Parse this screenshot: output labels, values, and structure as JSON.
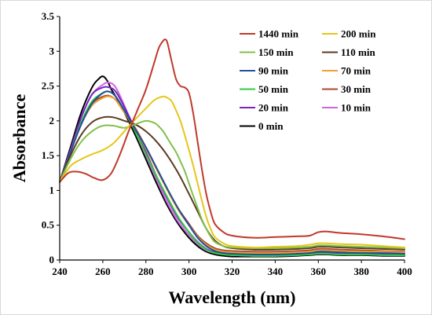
{
  "chart_data": {
    "type": "line",
    "xlabel": "Wavelength (nm)",
    "ylabel": "Absorbance",
    "xlim": [
      240,
      400
    ],
    "ylim": [
      0,
      3.5
    ],
    "x_ticks": [
      "240",
      "260",
      "280",
      "300",
      "320",
      "340",
      "360",
      "380",
      "400"
    ],
    "y_ticks": [
      "0",
      "0.5",
      "1",
      "1.5",
      "2",
      "2.5",
      "3",
      "3.5"
    ],
    "grid": false,
    "legend_position": "top-right",
    "legend_columns": 2,
    "series": [
      {
        "name": "1440 min",
        "color": "#c0392b",
        "x": [
          240,
          244,
          248,
          252,
          256,
          260,
          264,
          268,
          272,
          276,
          280,
          284,
          286,
          288,
          289,
          290,
          292,
          294,
          296,
          298,
          300,
          302,
          304,
          306,
          308,
          310,
          312,
          316,
          320,
          330,
          340,
          350,
          356,
          360,
          364,
          370,
          380,
          390,
          400
        ],
        "y": [
          1.12,
          1.25,
          1.27,
          1.24,
          1.18,
          1.15,
          1.25,
          1.52,
          1.85,
          2.15,
          2.45,
          2.85,
          3.05,
          3.15,
          3.17,
          3.12,
          2.85,
          2.6,
          2.5,
          2.48,
          2.4,
          2.1,
          1.7,
          1.3,
          0.95,
          0.7,
          0.52,
          0.4,
          0.35,
          0.32,
          0.33,
          0.34,
          0.35,
          0.4,
          0.41,
          0.39,
          0.37,
          0.34,
          0.3
        ]
      },
      {
        "name": "200 min",
        "color": "#e6c619",
        "x": [
          240,
          245,
          250,
          255,
          260,
          265,
          270,
          275,
          280,
          284,
          288,
          290,
          292,
          294,
          296,
          298,
          300,
          302,
          304,
          306,
          308,
          310,
          312,
          316,
          320,
          330,
          340,
          350,
          356,
          360,
          364,
          370,
          380,
          390,
          400
        ],
        "y": [
          1.12,
          1.35,
          1.45,
          1.52,
          1.58,
          1.68,
          1.85,
          2.02,
          2.18,
          2.3,
          2.35,
          2.33,
          2.28,
          2.15,
          2.0,
          1.8,
          1.58,
          1.35,
          1.1,
          0.85,
          0.62,
          0.45,
          0.33,
          0.24,
          0.2,
          0.18,
          0.19,
          0.2,
          0.22,
          0.24,
          0.24,
          0.23,
          0.22,
          0.2,
          0.18
        ]
      },
      {
        "name": "150 min",
        "color": "#7fc14b",
        "x": [
          240,
          245,
          250,
          255,
          260,
          265,
          270,
          275,
          280,
          284,
          286,
          288,
          290,
          292,
          294,
          296,
          298,
          300,
          302,
          304,
          306,
          308,
          310,
          312,
          316,
          320,
          330,
          340,
          350,
          356,
          360,
          364,
          370,
          380,
          390,
          400
        ],
        "y": [
          1.12,
          1.45,
          1.7,
          1.85,
          1.93,
          1.93,
          1.9,
          1.95,
          2.0,
          1.97,
          1.92,
          1.85,
          1.75,
          1.65,
          1.55,
          1.42,
          1.28,
          1.1,
          0.92,
          0.75,
          0.58,
          0.45,
          0.34,
          0.26,
          0.2,
          0.18,
          0.17,
          0.17,
          0.18,
          0.19,
          0.21,
          0.21,
          0.2,
          0.19,
          0.18,
          0.17
        ]
      },
      {
        "name": "110 min",
        "color": "#5c3a21",
        "x": [
          240,
          245,
          250,
          255,
          260,
          265,
          270,
          275,
          280,
          285,
          290,
          295,
          300,
          304,
          308,
          312,
          316,
          320,
          330,
          340,
          350,
          356,
          360,
          364,
          370,
          380,
          390,
          400
        ],
        "y": [
          1.12,
          1.5,
          1.8,
          1.98,
          2.05,
          2.05,
          2.0,
          1.95,
          1.85,
          1.7,
          1.5,
          1.25,
          0.95,
          0.7,
          0.45,
          0.28,
          0.2,
          0.17,
          0.15,
          0.15,
          0.16,
          0.17,
          0.19,
          0.19,
          0.18,
          0.17,
          0.16,
          0.15
        ]
      },
      {
        "name": "90 min",
        "color": "#1f4e9c",
        "x": [
          240,
          245,
          250,
          255,
          260,
          263,
          266,
          270,
          275,
          280,
          285,
          290,
          295,
          300,
          304,
          308,
          312,
          316,
          320,
          330,
          340,
          350,
          356,
          360,
          364,
          370,
          380,
          390,
          400
        ],
        "y": [
          1.12,
          1.55,
          1.95,
          2.25,
          2.4,
          2.42,
          2.35,
          2.15,
          1.88,
          1.62,
          1.32,
          1.02,
          0.74,
          0.5,
          0.32,
          0.2,
          0.13,
          0.1,
          0.09,
          0.08,
          0.08,
          0.09,
          0.1,
          0.12,
          0.12,
          0.11,
          0.1,
          0.1,
          0.09
        ]
      },
      {
        "name": "70 min",
        "color": "#f0a030",
        "x": [
          240,
          245,
          250,
          255,
          260,
          263,
          266,
          270,
          275,
          280,
          285,
          290,
          295,
          300,
          304,
          308,
          312,
          316,
          320,
          330,
          340,
          350,
          356,
          360,
          364,
          370,
          380,
          390,
          400
        ],
        "y": [
          1.12,
          1.55,
          1.95,
          2.22,
          2.33,
          2.35,
          2.3,
          2.12,
          1.88,
          1.6,
          1.3,
          1.0,
          0.72,
          0.5,
          0.33,
          0.22,
          0.15,
          0.12,
          0.11,
          0.1,
          0.1,
          0.11,
          0.12,
          0.14,
          0.14,
          0.13,
          0.12,
          0.12,
          0.11
        ]
      },
      {
        "name": "50 min",
        "color": "#2ecc40",
        "x": [
          240,
          245,
          250,
          255,
          260,
          263,
          266,
          270,
          275,
          280,
          285,
          290,
          295,
          300,
          304,
          308,
          312,
          316,
          320,
          330,
          340,
          350,
          356,
          360,
          364,
          370,
          380,
          390,
          400
        ],
        "y": [
          1.12,
          1.55,
          1.98,
          2.28,
          2.4,
          2.42,
          2.35,
          2.15,
          1.85,
          1.52,
          1.2,
          0.9,
          0.62,
          0.4,
          0.25,
          0.15,
          0.1,
          0.08,
          0.07,
          0.06,
          0.06,
          0.07,
          0.08,
          0.09,
          0.09,
          0.08,
          0.08,
          0.07,
          0.07
        ]
      },
      {
        "name": "30 min",
        "color": "#a84a2c",
        "x": [
          240,
          245,
          250,
          255,
          260,
          263,
          266,
          270,
          275,
          280,
          285,
          290,
          295,
          300,
          304,
          308,
          312,
          316,
          320,
          330,
          340,
          350,
          356,
          360,
          364,
          370,
          380,
          390,
          400
        ],
        "y": [
          1.12,
          1.55,
          1.98,
          2.25,
          2.35,
          2.36,
          2.3,
          2.12,
          1.9,
          1.62,
          1.32,
          1.02,
          0.74,
          0.52,
          0.35,
          0.24,
          0.17,
          0.14,
          0.13,
          0.12,
          0.12,
          0.13,
          0.14,
          0.16,
          0.16,
          0.15,
          0.14,
          0.13,
          0.12
        ]
      },
      {
        "name": "20 min",
        "color": "#7d20c8",
        "x": [
          240,
          245,
          250,
          255,
          260,
          263,
          266,
          270,
          275,
          280,
          285,
          290,
          295,
          300,
          304,
          308,
          312,
          316,
          320,
          330,
          340,
          350,
          356,
          360,
          364,
          370,
          380,
          390,
          400
        ],
        "y": [
          1.12,
          1.58,
          2.05,
          2.38,
          2.48,
          2.48,
          2.42,
          2.2,
          1.88,
          1.55,
          1.2,
          0.88,
          0.6,
          0.4,
          0.26,
          0.16,
          0.11,
          0.09,
          0.08,
          0.07,
          0.07,
          0.08,
          0.09,
          0.1,
          0.1,
          0.09,
          0.09,
          0.08,
          0.08
        ]
      },
      {
        "name": "10 min",
        "color": "#cc66dd",
        "x": [
          240,
          245,
          250,
          255,
          260,
          263,
          266,
          270,
          275,
          280,
          285,
          290,
          295,
          300,
          304,
          308,
          312,
          316,
          320,
          330,
          340,
          350,
          356,
          360,
          364,
          370,
          380,
          390,
          400
        ],
        "y": [
          1.12,
          1.58,
          2.05,
          2.38,
          2.52,
          2.55,
          2.48,
          2.22,
          1.85,
          1.5,
          1.15,
          0.82,
          0.55,
          0.36,
          0.23,
          0.14,
          0.1,
          0.08,
          0.07,
          0.06,
          0.06,
          0.07,
          0.08,
          0.09,
          0.09,
          0.08,
          0.08,
          0.07,
          0.07
        ]
      },
      {
        "name": "0 min",
        "color": "#000000",
        "x": [
          240,
          245,
          250,
          255,
          258,
          260,
          262,
          264,
          266,
          270,
          275,
          280,
          285,
          290,
          295,
          300,
          304,
          308,
          312,
          316,
          320,
          330,
          340,
          350,
          356,
          360,
          364,
          370,
          380,
          390,
          400
        ],
        "y": [
          1.12,
          1.62,
          2.12,
          2.48,
          2.6,
          2.64,
          2.58,
          2.45,
          2.35,
          2.12,
          1.8,
          1.45,
          1.1,
          0.78,
          0.52,
          0.32,
          0.2,
          0.12,
          0.08,
          0.06,
          0.05,
          0.05,
          0.05,
          0.06,
          0.07,
          0.08,
          0.08,
          0.07,
          0.07,
          0.06,
          0.06
        ]
      }
    ]
  }
}
